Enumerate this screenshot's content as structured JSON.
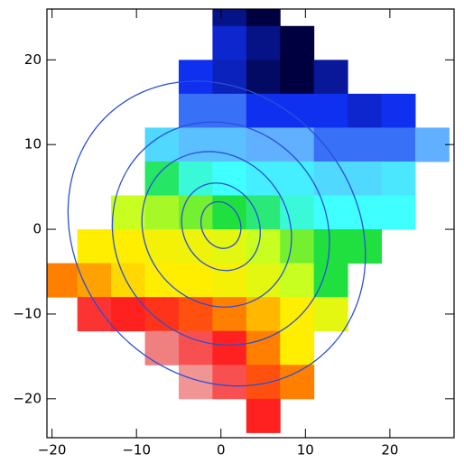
{
  "chart_data": {
    "type": "heatmap",
    "xlim": [
      -20.6,
      27.6
    ],
    "ylim": [
      -24.6,
      26
    ],
    "xticks": [
      {
        "value": -20,
        "label": "−20"
      },
      {
        "value": -10,
        "label": "−10"
      },
      0,
      10,
      20
    ],
    "yticks": [
      {
        "value": -20,
        "label": "−20"
      },
      {
        "value": -10,
        "label": "−10"
      },
      0,
      10,
      20
    ],
    "x": [
      -19,
      -15,
      -11,
      -7,
      -3,
      1,
      5,
      9,
      13,
      17,
      21,
      25
    ],
    "y": [
      26,
      22,
      18,
      14,
      10,
      6,
      2,
      -2,
      -6,
      -10,
      -14,
      -18,
      -22
    ],
    "z": [
      [
        null,
        null,
        null,
        null,
        null,
        9.6,
        10,
        null,
        null,
        null,
        null,
        null
      ],
      [
        null,
        null,
        null,
        null,
        null,
        9.2,
        9.6,
        10,
        null,
        null,
        null,
        null
      ],
      [
        null,
        null,
        null,
        null,
        9,
        9.3,
        9.8,
        10,
        9.5,
        null,
        null,
        null
      ],
      [
        null,
        null,
        null,
        null,
        8.5,
        8.5,
        9,
        9,
        9,
        9.2,
        9,
        null
      ],
      [
        null,
        null,
        null,
        7.5,
        7.8,
        7.8,
        8,
        8,
        8.5,
        8.5,
        8.5,
        8
      ],
      [
        null,
        null,
        null,
        6.2,
        6.8,
        7,
        7.2,
        7.2,
        7.5,
        7.5,
        7.3,
        null
      ],
      [
        null,
        null,
        5,
        5.2,
        5.5,
        6,
        6.3,
        6.8,
        7,
        7,
        7,
        null
      ],
      [
        null,
        4,
        4,
        4.2,
        4.3,
        4.5,
        5,
        5.5,
        6,
        6,
        null,
        null
      ],
      [
        3,
        3.3,
        3.8,
        4,
        4,
        4.2,
        4.5,
        5,
        6,
        null,
        null,
        null
      ],
      [
        null,
        1.8,
        2,
        2.2,
        2.5,
        3,
        3.5,
        4,
        4.5,
        null,
        null,
        null
      ],
      [
        null,
        null,
        null,
        1,
        1.5,
        2,
        3,
        4,
        null,
        null,
        null,
        null
      ],
      [
        null,
        null,
        null,
        null,
        0.8,
        1.5,
        2.5,
        3,
        null,
        null,
        null,
        null
      ],
      [
        null,
        null,
        null,
        null,
        null,
        null,
        2,
        null,
        null,
        null,
        null,
        null
      ]
    ],
    "zlim": [
      0,
      10
    ],
    "colormap": [
      "#f4e4e4",
      "#f08080",
      "#ff2020",
      "#ff8000",
      "#ffee00",
      "#c8ff20",
      "#20e040",
      "#40ffff",
      "#60b0ff",
      "#1030f0",
      "#000040"
    ],
    "contour_color": "#2a4fd8",
    "contours": [
      {
        "cx": 0,
        "cy": 0.5,
        "rx": 2.3,
        "ry": 2.8,
        "angle": -20
      },
      {
        "cx": 0,
        "cy": 0.3,
        "rx": 4.5,
        "ry": 5.3,
        "angle": -25
      },
      {
        "cx": -0.5,
        "cy": 0,
        "rx": 8.5,
        "ry": 9.5,
        "angle": -35
      },
      {
        "cx": 0,
        "cy": -0.5,
        "rx": 12.5,
        "ry": 13.5,
        "angle": -35
      },
      {
        "cx": -0.5,
        "cy": -0.5,
        "rx": 16.5,
        "ry": 19,
        "angle": -40
      }
    ]
  }
}
